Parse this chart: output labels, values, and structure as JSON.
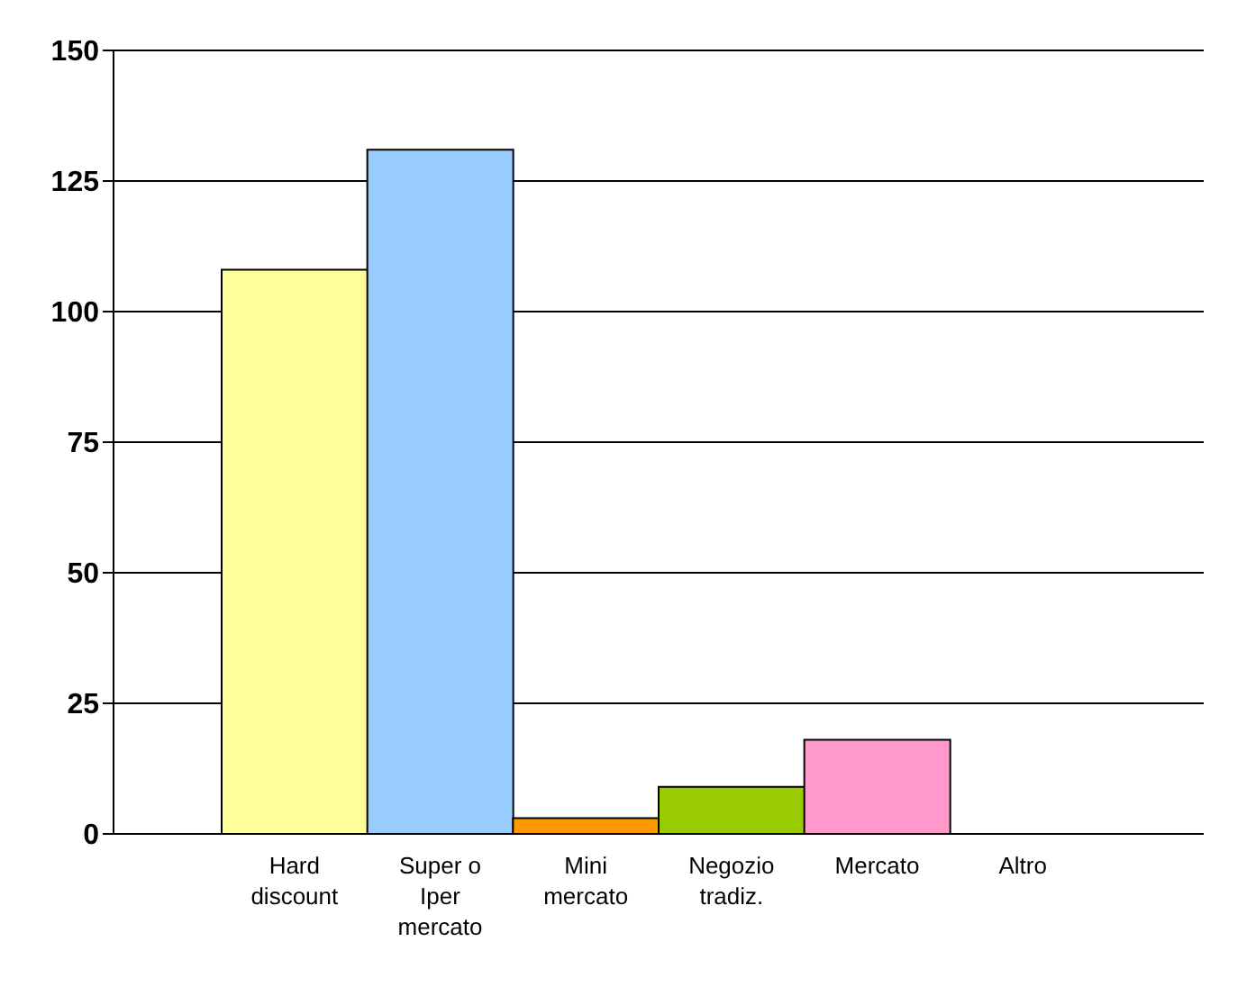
{
  "chart_data": {
    "type": "bar",
    "categories": [
      "Hard discount",
      "Super o Iper mercato",
      "Mini mercato",
      "Negozio tradiz.",
      "Mercato",
      "Altro"
    ],
    "values": [
      108,
      131,
      3,
      9,
      18,
      0
    ],
    "colors": [
      "#ffff99",
      "#99ccff",
      "#ff9900",
      "#99cc00",
      "#ff99cc",
      "#0000cc"
    ],
    "ylim": [
      0,
      150
    ],
    "yticks": [
      0,
      25,
      50,
      75,
      100,
      125,
      150
    ],
    "grid": "y"
  }
}
